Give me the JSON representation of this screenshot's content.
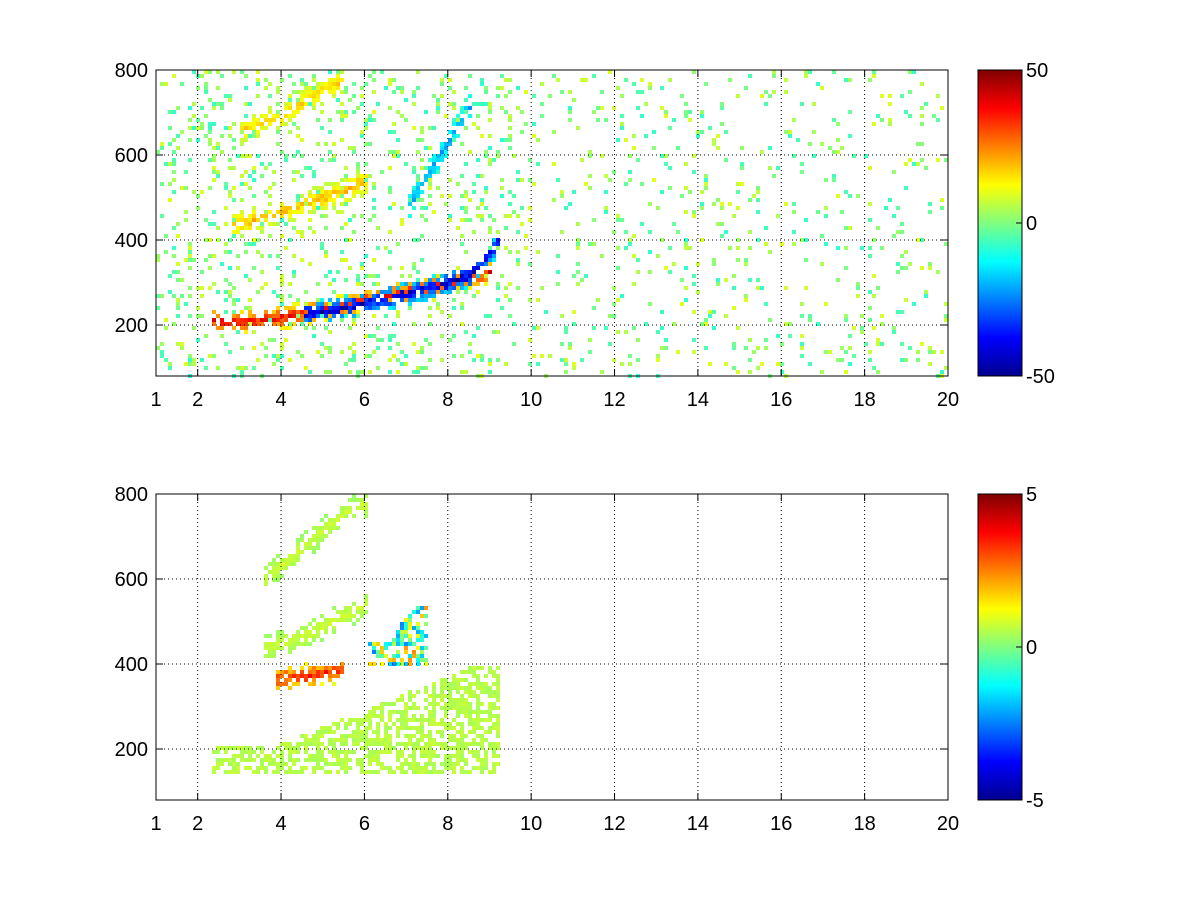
{
  "chart_data": [
    {
      "type": "heatmap",
      "title": "",
      "xlabel": "",
      "ylabel": "",
      "xlim": [
        1,
        20
      ],
      "ylim": [
        80,
        800
      ],
      "xticks": [
        1,
        2,
        4,
        6,
        8,
        10,
        12,
        14,
        16,
        18,
        20
      ],
      "yticks": [
        200,
        400,
        600,
        800
      ],
      "grid": true,
      "colorbar": {
        "position": "right",
        "min": -50,
        "max": 50,
        "ticks": [
          50,
          0,
          -50
        ],
        "colormap": "jet"
      },
      "features": [
        {
          "name": "",
          "kind": "positive-band",
          "points": [
            [
              2.3,
              215
            ],
            [
              3,
              212
            ],
            [
              4,
              222
            ],
            [
              5,
              240
            ],
            [
              6,
              262
            ],
            [
              7,
              282
            ],
            [
              8,
              305
            ],
            [
              9,
              330
            ]
          ],
          "value": 38
        },
        {
          "name": "",
          "kind": "negative-band",
          "points": [
            [
              4.5,
              230
            ],
            [
              5.5,
              245
            ],
            [
              6.5,
              268
            ],
            [
              7.5,
              290
            ],
            [
              8.5,
              320
            ],
            [
              9.2,
              400
            ]
          ],
          "value": -45
        },
        {
          "name": "",
          "kind": "positive-band",
          "points": [
            [
              2.8,
              440
            ],
            [
              3.5,
              455
            ],
            [
              4.5,
              490
            ],
            [
              5.5,
              520
            ],
            [
              6,
              545
            ]
          ],
          "value": 20
        },
        {
          "name": "",
          "kind": "positive-band",
          "points": [
            [
              3,
              660
            ],
            [
              4,
              700
            ],
            [
              5,
              760
            ],
            [
              5.5,
              780
            ]
          ],
          "value": 18
        },
        {
          "name": "",
          "kind": "negative-band",
          "points": [
            [
              7,
              480
            ],
            [
              7.5,
              560
            ],
            [
              8,
              640
            ],
            [
              8.5,
              720
            ]
          ],
          "value": -22
        }
      ]
    },
    {
      "type": "heatmap",
      "title": "",
      "xlabel": "",
      "ylabel": "",
      "xlim": [
        1,
        20
      ],
      "ylim": [
        80,
        800
      ],
      "xticks": [
        1,
        2,
        4,
        6,
        8,
        10,
        12,
        14,
        16,
        18,
        20
      ],
      "yticks": [
        200,
        400,
        600,
        800
      ],
      "grid": true,
      "colorbar": {
        "position": "right",
        "min": -5,
        "max": 5,
        "ticks": [
          5,
          0,
          -5
        ],
        "colormap": "jet"
      },
      "features": [
        {
          "name": "",
          "kind": "broad-region",
          "x_range": [
            2.3,
            9.2
          ],
          "y_range": [
            150,
            400
          ],
          "value": 0.6
        },
        {
          "name": "",
          "kind": "positive-band",
          "points": [
            [
              3.8,
              370
            ],
            [
              4.5,
              375
            ],
            [
              5,
              385
            ],
            [
              5.5,
              395
            ]
          ],
          "value": 3.5
        },
        {
          "name": "",
          "kind": "mixed-spots",
          "x_range": [
            6,
            7.5
          ],
          "y_range": [
            400,
            560
          ],
          "value": 2.5
        },
        {
          "name": "",
          "kind": "positive-band",
          "points": [
            [
              3.5,
              440
            ],
            [
              4.5,
              470
            ],
            [
              5.5,
              520
            ],
            [
              6,
              545
            ]
          ],
          "value": 0.8
        },
        {
          "name": "",
          "kind": "positive-band",
          "points": [
            [
              3.5,
              600
            ],
            [
              4.5,
              680
            ],
            [
              5.5,
              760
            ],
            [
              6,
              780
            ]
          ],
          "value": 0.8
        }
      ]
    }
  ]
}
